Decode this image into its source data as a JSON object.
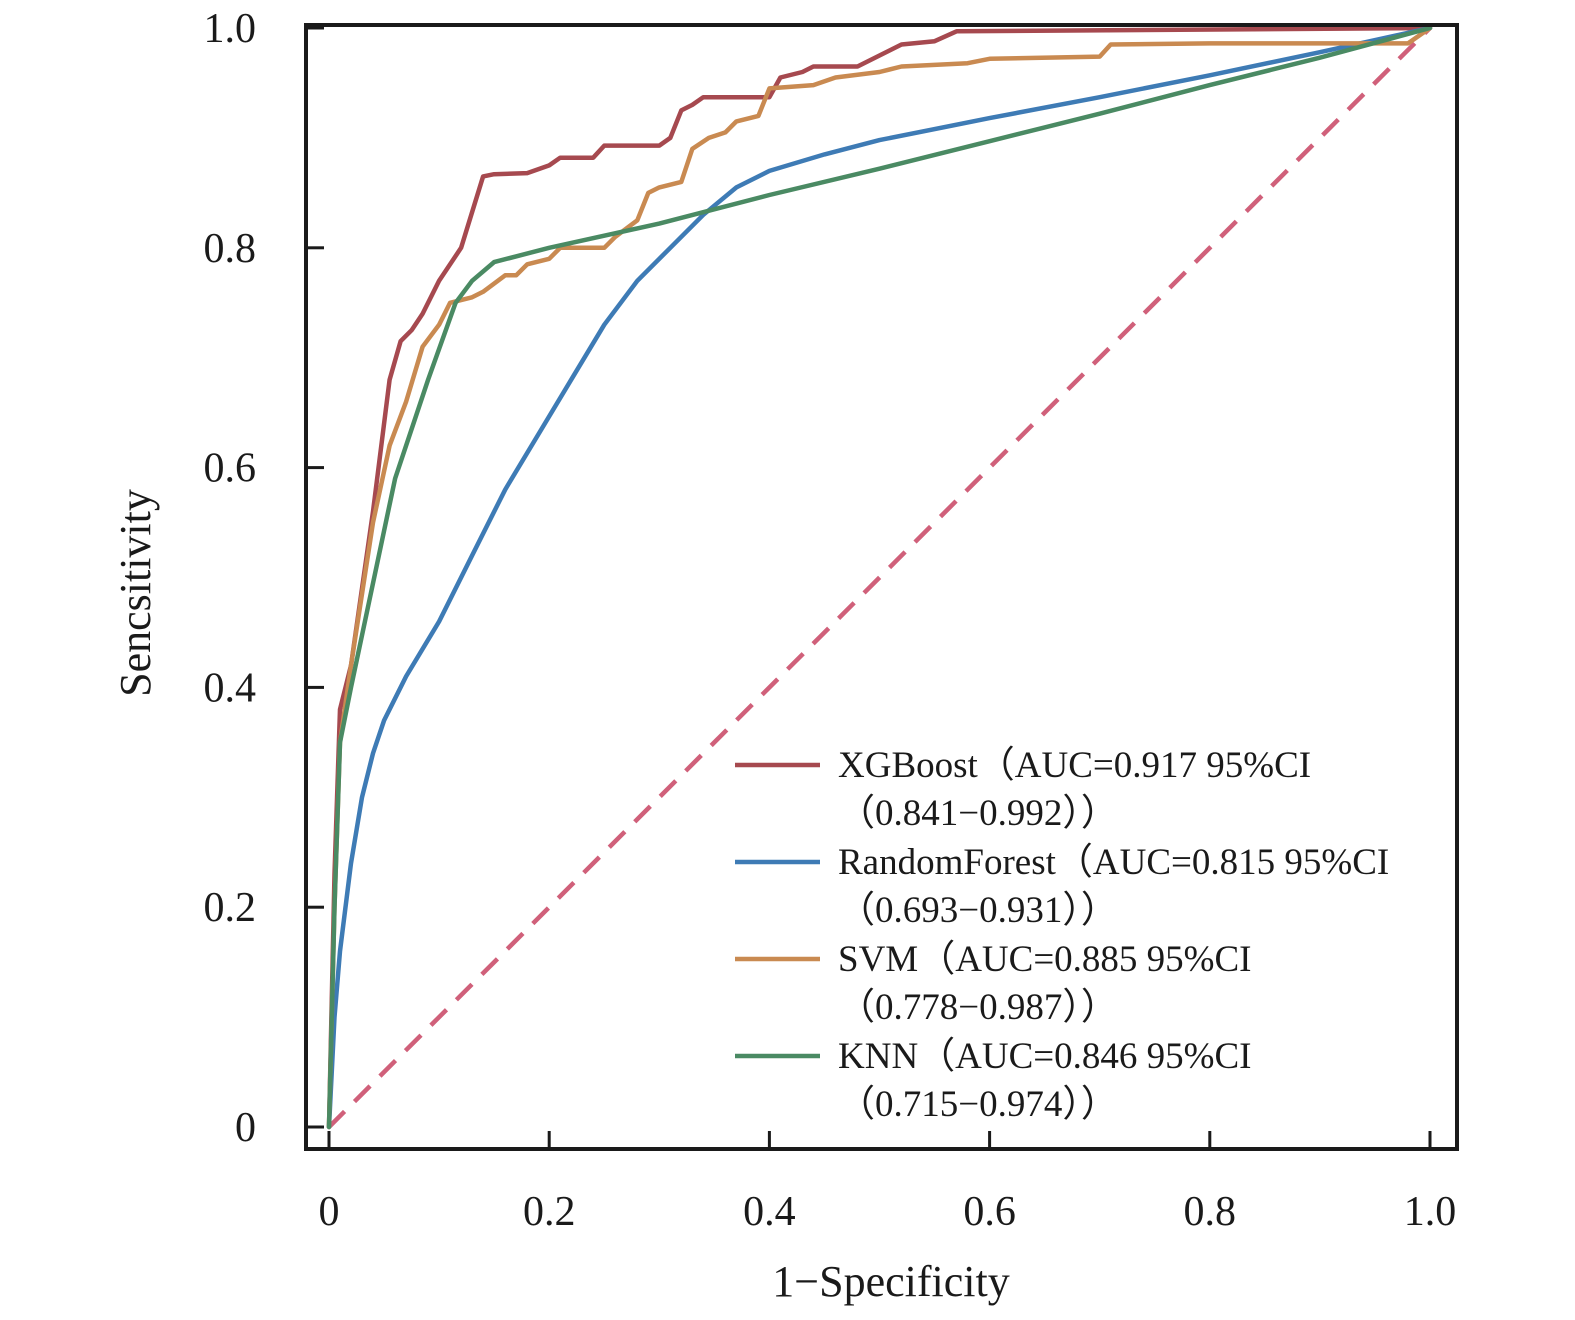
{
  "chart_data": {
    "type": "line",
    "xlabel": "1−Specificity",
    "ylabel": "Sencsitivity",
    "xlim": [
      0,
      1
    ],
    "ylim": [
      0,
      1
    ],
    "x_ticks": [
      {
        "value": 0,
        "label": "0"
      },
      {
        "value": 0.2,
        "label": "0.2"
      },
      {
        "value": 0.4,
        "label": "0.4"
      },
      {
        "value": 0.6,
        "label": "0.6"
      },
      {
        "value": 0.8,
        "label": "0.8"
      },
      {
        "value": 1.0,
        "label": "1.0"
      }
    ],
    "y_ticks": [
      {
        "value": 0,
        "label": "0"
      },
      {
        "value": 0.2,
        "label": "0.2"
      },
      {
        "value": 0.4,
        "label": "0.4"
      },
      {
        "value": 0.6,
        "label": "0.6"
      },
      {
        "value": 0.8,
        "label": "0.8"
      },
      {
        "value": 1.0,
        "label": "1.0"
      }
    ],
    "grid": false,
    "legend_position": "bottom-right",
    "series": [
      {
        "name": "XGBoost",
        "legend_line1": "XGBoost（AUC=0.917 95%CI",
        "legend_line2": "（0.841−0.992））",
        "color": "#A6494F",
        "points": [
          [
            0,
            0
          ],
          [
            0.005,
            0.23
          ],
          [
            0.01,
            0.38
          ],
          [
            0.02,
            0.42
          ],
          [
            0.04,
            0.56
          ],
          [
            0.055,
            0.68
          ],
          [
            0.065,
            0.715
          ],
          [
            0.075,
            0.725
          ],
          [
            0.085,
            0.74
          ],
          [
            0.1,
            0.77
          ],
          [
            0.12,
            0.8
          ],
          [
            0.14,
            0.865
          ],
          [
            0.15,
            0.867
          ],
          [
            0.18,
            0.868
          ],
          [
            0.2,
            0.875
          ],
          [
            0.21,
            0.882
          ],
          [
            0.24,
            0.882
          ],
          [
            0.25,
            0.893
          ],
          [
            0.3,
            0.893
          ],
          [
            0.31,
            0.9
          ],
          [
            0.32,
            0.925
          ],
          [
            0.33,
            0.93
          ],
          [
            0.34,
            0.937
          ],
          [
            0.4,
            0.937
          ],
          [
            0.41,
            0.955
          ],
          [
            0.43,
            0.96
          ],
          [
            0.44,
            0.965
          ],
          [
            0.48,
            0.965
          ],
          [
            0.5,
            0.975
          ],
          [
            0.52,
            0.985
          ],
          [
            0.55,
            0.988
          ],
          [
            0.57,
            0.997
          ],
          [
            1.0,
            1.0
          ]
        ]
      },
      {
        "name": "RandomForest",
        "legend_line1": "RandomForest（AUC=0.815 95%CI",
        "legend_line2": "（0.693−0.931））",
        "color": "#3E7BB5",
        "points": [
          [
            0,
            0
          ],
          [
            0.005,
            0.1
          ],
          [
            0.01,
            0.16
          ],
          [
            0.02,
            0.24
          ],
          [
            0.03,
            0.3
          ],
          [
            0.04,
            0.34
          ],
          [
            0.05,
            0.37
          ],
          [
            0.07,
            0.41
          ],
          [
            0.1,
            0.46
          ],
          [
            0.13,
            0.52
          ],
          [
            0.16,
            0.58
          ],
          [
            0.19,
            0.63
          ],
          [
            0.22,
            0.68
          ],
          [
            0.25,
            0.73
          ],
          [
            0.28,
            0.77
          ],
          [
            0.31,
            0.8
          ],
          [
            0.34,
            0.83
          ],
          [
            0.37,
            0.855
          ],
          [
            0.4,
            0.87
          ],
          [
            0.45,
            0.885
          ],
          [
            0.5,
            0.898
          ],
          [
            0.6,
            0.918
          ],
          [
            0.7,
            0.937
          ],
          [
            0.8,
            0.957
          ],
          [
            0.9,
            0.978
          ],
          [
            1.0,
            1.0
          ]
        ]
      },
      {
        "name": "SVM",
        "legend_line1": "SVM（AUC=0.885 95%CI",
        "legend_line2": "（0.778−0.987））",
        "color": "#C98A51",
        "points": [
          [
            0,
            0
          ],
          [
            0.005,
            0.2
          ],
          [
            0.01,
            0.35
          ],
          [
            0.02,
            0.42
          ],
          [
            0.04,
            0.55
          ],
          [
            0.055,
            0.62
          ],
          [
            0.07,
            0.66
          ],
          [
            0.085,
            0.71
          ],
          [
            0.1,
            0.73
          ],
          [
            0.11,
            0.75
          ],
          [
            0.13,
            0.755
          ],
          [
            0.14,
            0.76
          ],
          [
            0.16,
            0.775
          ],
          [
            0.17,
            0.775
          ],
          [
            0.18,
            0.785
          ],
          [
            0.2,
            0.79
          ],
          [
            0.21,
            0.8
          ],
          [
            0.25,
            0.8
          ],
          [
            0.26,
            0.81
          ],
          [
            0.28,
            0.825
          ],
          [
            0.29,
            0.85
          ],
          [
            0.3,
            0.855
          ],
          [
            0.32,
            0.86
          ],
          [
            0.33,
            0.89
          ],
          [
            0.345,
            0.9
          ],
          [
            0.36,
            0.905
          ],
          [
            0.37,
            0.915
          ],
          [
            0.39,
            0.92
          ],
          [
            0.4,
            0.945
          ],
          [
            0.44,
            0.948
          ],
          [
            0.46,
            0.955
          ],
          [
            0.5,
            0.96
          ],
          [
            0.52,
            0.965
          ],
          [
            0.58,
            0.968
          ],
          [
            0.6,
            0.972
          ],
          [
            0.7,
            0.974
          ],
          [
            0.71,
            0.985
          ],
          [
            0.8,
            0.986
          ],
          [
            0.9,
            0.986
          ],
          [
            0.98,
            0.986
          ],
          [
            1.0,
            1.0
          ]
        ]
      },
      {
        "name": "KNN",
        "legend_line1": "KNN（AUC=0.846 95%CI",
        "legend_line2": "（0.715−0.974））",
        "color": "#4A8A63",
        "points": [
          [
            0,
            0
          ],
          [
            0.005,
            0.2
          ],
          [
            0.01,
            0.35
          ],
          [
            0.02,
            0.4
          ],
          [
            0.06,
            0.59
          ],
          [
            0.09,
            0.68
          ],
          [
            0.115,
            0.75
          ],
          [
            0.13,
            0.77
          ],
          [
            0.15,
            0.787
          ],
          [
            0.2,
            0.8
          ],
          [
            0.3,
            0.822
          ],
          [
            0.4,
            0.848
          ],
          [
            0.5,
            0.872
          ],
          [
            0.6,
            0.897
          ],
          [
            0.7,
            0.922
          ],
          [
            0.8,
            0.948
          ],
          [
            0.9,
            0.973
          ],
          [
            1.0,
            1.0
          ]
        ]
      },
      {
        "name": "",
        "color": "#D0607A",
        "dashed": true,
        "points": [
          [
            0,
            0
          ],
          [
            1,
            1
          ]
        ]
      }
    ]
  }
}
